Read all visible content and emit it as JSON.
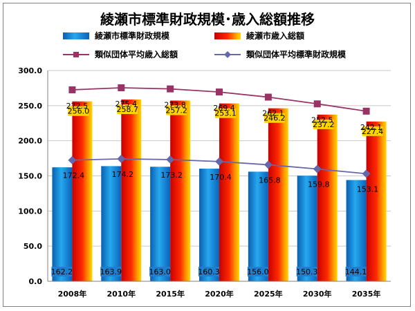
{
  "chart_data": {
    "type": "bar",
    "title": "綾瀬市標準財政規模･歳入総額推移",
    "categories": [
      "2008年",
      "2010年",
      "2015年",
      "2020年",
      "2025年",
      "2030年",
      "2035年"
    ],
    "ylim": [
      0,
      300
    ],
    "yticks": [
      "0.0",
      "50.0",
      "100.0",
      "150.0",
      "200.0",
      "250.0",
      "300.0"
    ],
    "ytick_values": [
      0,
      50,
      100,
      150,
      200,
      250,
      300
    ],
    "grid": true,
    "legend_position": "top",
    "series": [
      {
        "name": "綾瀬市標準財政規模",
        "kind": "bar",
        "color": "#1e90d8",
        "values": [
          162.2,
          163.9,
          163.0,
          160.3,
          156.0,
          150.3,
          144.1
        ],
        "labels": [
          "162.2",
          "163.9",
          "163.0",
          "160.3",
          "156.0",
          "150.3",
          "144.1"
        ]
      },
      {
        "name": "綾瀬市歳入総額",
        "kind": "bar",
        "color": "#e81010",
        "values": [
          256.0,
          258.7,
          257.2,
          253.1,
          246.2,
          237.2,
          227.4
        ],
        "labels": [
          "256.0",
          "258.7",
          "257.2",
          "253.1",
          "246.2",
          "237.2",
          "227.4"
        ]
      },
      {
        "name": "類似団体平均歳入総額",
        "kind": "line",
        "color": "#993366",
        "marker": "square",
        "values": [
          272.5,
          275.4,
          273.8,
          269.4,
          262.1,
          252.5,
          242.1
        ],
        "labels": [
          "272.5",
          "275.4",
          "273.8",
          "269.4",
          "262.1",
          "252.5",
          "242.1"
        ]
      },
      {
        "name": "類似団体平均標準財政規模",
        "kind": "line",
        "color": "#6666aa",
        "marker": "diamond",
        "values": [
          172.4,
          174.2,
          173.2,
          170.4,
          165.8,
          159.8,
          153.1
        ],
        "labels": [
          "172.4",
          "174.2",
          "173.2",
          "170.4",
          "165.8",
          "159.8",
          "153.1"
        ]
      }
    ]
  }
}
